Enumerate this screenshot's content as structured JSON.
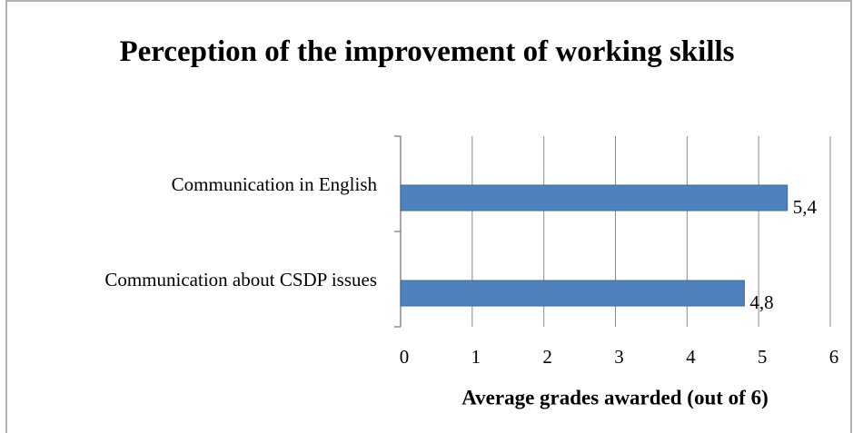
{
  "chart_data": {
    "type": "bar",
    "orientation": "horizontal",
    "title": "Perception of the improvement of working skills",
    "x_label": "Average grades awarded (out of 6)",
    "categories": [
      "Communication in English",
      "Communication about CSDP issues"
    ],
    "values": [
      5.4,
      4.8
    ],
    "value_labels": [
      "5,4",
      "4,8"
    ],
    "color": "#4f81bd",
    "xlim": [
      0,
      6
    ],
    "xticks": [
      0,
      1,
      2,
      3,
      4,
      5,
      6
    ],
    "grid": true
  }
}
